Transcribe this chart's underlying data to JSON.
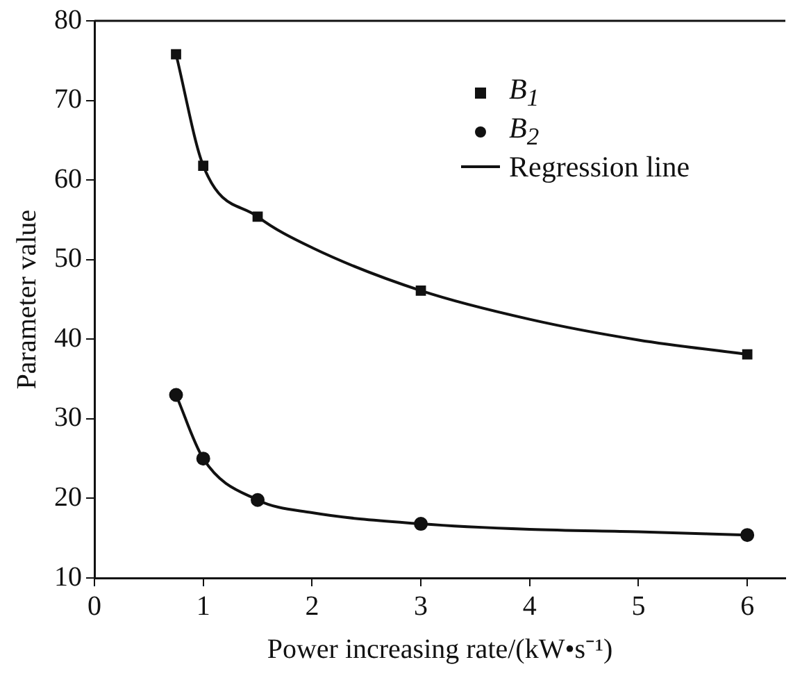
{
  "chart_data": {
    "type": "scatter",
    "xlabel": "Power increasing rate/(kW•s⁻¹)",
    "ylabel": "Parameter value",
    "xlim": [
      0,
      6.35
    ],
    "xticks": [
      0,
      1,
      2,
      3,
      4,
      5,
      6
    ],
    "ylim": [
      10,
      80
    ],
    "yticks": [
      10,
      20,
      30,
      40,
      50,
      60,
      70,
      80
    ],
    "grid": false,
    "legend": "top right",
    "series": [
      {
        "name": "B$_{1}$",
        "marker": "square",
        "color": "#111111",
        "x": [
          0.75,
          1,
          1.5,
          3,
          6
        ],
        "values": [
          75.8,
          61.8,
          55.4,
          46.1,
          38.1
        ]
      },
      {
        "name": "B$_{2}$",
        "marker": "circle",
        "color": "#111111",
        "x": [
          0.75,
          1,
          1.5,
          3,
          6
        ],
        "values": [
          33.0,
          25.0,
          19.8,
          16.8,
          15.4
        ]
      },
      {
        "name": "Regression line",
        "type": "line",
        "marker": "none",
        "line_style": "solid",
        "color": "#111111",
        "x": [
          0.75,
          1,
          1.5,
          2,
          3,
          4,
          5,
          6
        ],
        "values": [
          75.8,
          61.8,
          55.4,
          51.5,
          46.1,
          42.5,
          39.9,
          38.1
        ]
      },
      {
        "type": "line",
        "marker": "none",
        "line_style": "solid",
        "color": "#111111",
        "x": [
          0.75,
          1,
          1.5,
          2,
          3,
          4,
          5,
          6
        ],
        "values": [
          33.0,
          25.0,
          19.8,
          18.2,
          16.8,
          16.1,
          15.8,
          15.4
        ]
      }
    ]
  }
}
